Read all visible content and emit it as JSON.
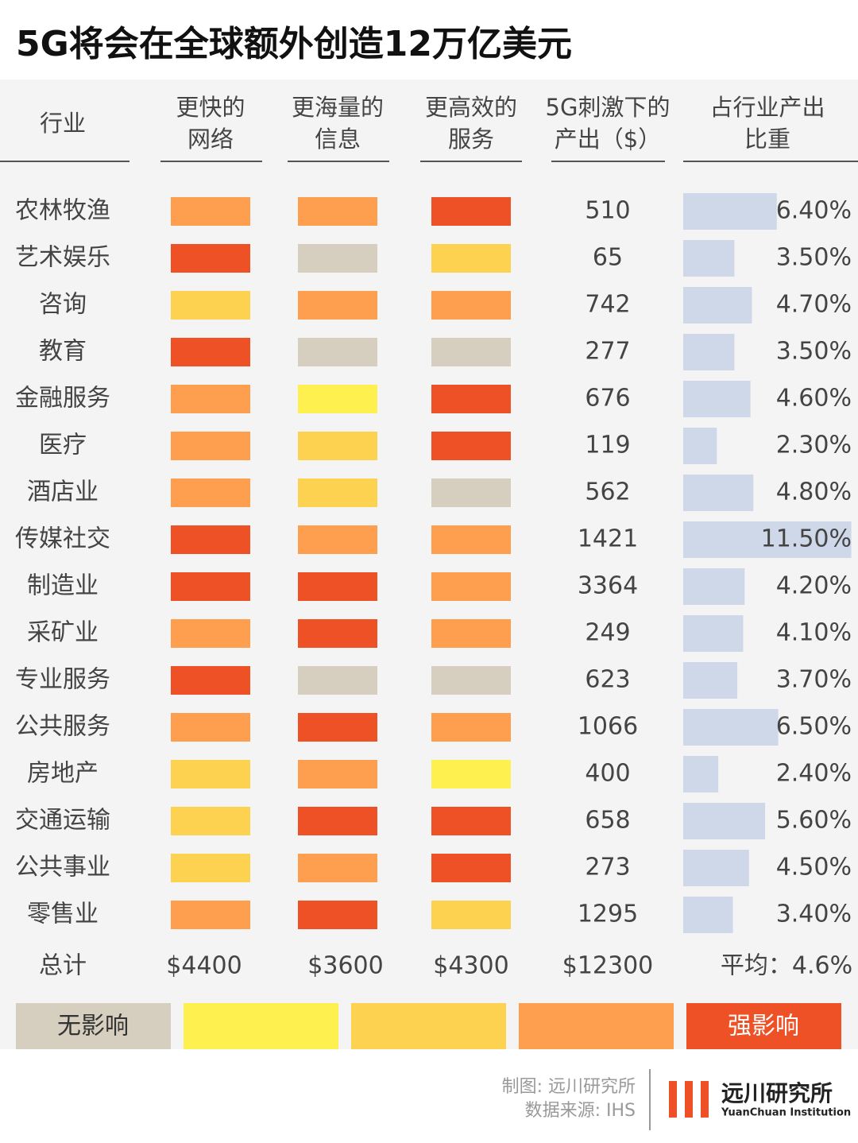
{
  "title": "5G将会在全球额外创造12万亿美元",
  "columns": [
    [
      "行业"
    ],
    [
      "更快的",
      "网络"
    ],
    [
      "更海量的",
      "信息"
    ],
    [
      "更高效的",
      "服务"
    ],
    [
      "5G刺激下的",
      "产出（$）"
    ],
    [
      "占行业产出",
      "比重"
    ]
  ],
  "rows": [
    {
      "industry": "农林牧渔",
      "fast": "#fd9f4f",
      "massive": "#fd9f4f",
      "efficient": "#ed5125",
      "output": "510",
      "share": {
        "value": 6.4,
        "label": "6.40%"
      }
    },
    {
      "industry": "艺术娱乐",
      "fast": "#ed5125",
      "massive": "#d6cfc0",
      "efficient": "#fdd250",
      "output": "65",
      "share": {
        "value": 3.5,
        "label": "3.50%"
      }
    },
    {
      "industry": "咨询",
      "fast": "#fdd250",
      "massive": "#fd9f4f",
      "efficient": "#fd9f4f",
      "output": "742",
      "share": {
        "value": 4.7,
        "label": "4.70%"
      }
    },
    {
      "industry": "教育",
      "fast": "#ed5125",
      "massive": "#d6cfc0",
      "efficient": "#d6cfc0",
      "output": "277",
      "share": {
        "value": 3.5,
        "label": "3.50%"
      }
    },
    {
      "industry": "金融服务",
      "fast": "#fd9f4f",
      "massive": "#fdf04f",
      "efficient": "#ed5125",
      "output": "676",
      "share": {
        "value": 4.6,
        "label": "4.60%"
      }
    },
    {
      "industry": "医疗",
      "fast": "#fd9f4f",
      "massive": "#fdd250",
      "efficient": "#ed5125",
      "output": "119",
      "share": {
        "value": 2.3,
        "label": "2.30%"
      }
    },
    {
      "industry": "酒店业",
      "fast": "#fd9f4f",
      "massive": "#fdd250",
      "efficient": "#d6cfc0",
      "output": "562",
      "share": {
        "value": 4.8,
        "label": "4.80%"
      }
    },
    {
      "industry": "传媒社交",
      "fast": "#ed5125",
      "massive": "#fd9f4f",
      "efficient": "#fd9f4f",
      "output": "1421",
      "share": {
        "value": 11.5,
        "label": "11.50%"
      }
    },
    {
      "industry": "制造业",
      "fast": "#ed5125",
      "massive": "#ed5125",
      "efficient": "#fd9f4f",
      "output": "3364",
      "share": {
        "value": 4.2,
        "label": "4.20%"
      }
    },
    {
      "industry": "采矿业",
      "fast": "#fd9f4f",
      "massive": "#ed5125",
      "efficient": "#fd9f4f",
      "output": "249",
      "share": {
        "value": 4.1,
        "label": "4.10%"
      }
    },
    {
      "industry": "专业服务",
      "fast": "#ed5125",
      "massive": "#d6cfc0",
      "efficient": "#d6cfc0",
      "output": "623",
      "share": {
        "value": 3.7,
        "label": "3.70%"
      }
    },
    {
      "industry": "公共服务",
      "fast": "#fd9f4f",
      "massive": "#ed5125",
      "efficient": "#fd9f4f",
      "output": "1066",
      "share": {
        "value": 6.5,
        "label": "6.50%"
      }
    },
    {
      "industry": "房地产",
      "fast": "#fdd250",
      "massive": "#fd9f4f",
      "efficient": "#fdf04f",
      "output": "400",
      "share": {
        "value": 2.4,
        "label": "2.40%"
      }
    },
    {
      "industry": "交通运输",
      "fast": "#fdd250",
      "massive": "#ed5125",
      "efficient": "#ed5125",
      "output": "658",
      "share": {
        "value": 5.6,
        "label": "5.60%"
      }
    },
    {
      "industry": "公共事业",
      "fast": "#fdd250",
      "massive": "#fd9f4f",
      "efficient": "#ed5125",
      "output": "273",
      "share": {
        "value": 4.5,
        "label": "4.50%"
      }
    },
    {
      "industry": "零售业",
      "fast": "#fd9f4f",
      "massive": "#ed5125",
      "efficient": "#fdd250",
      "output": "1295",
      "share": {
        "value": 3.4,
        "label": "3.40%"
      }
    }
  ],
  "totals": [
    "总计",
    "$4400",
    "$3600",
    "$4300",
    "$12300",
    "平均：4.6%"
  ],
  "share_bar_color": "#cfd8e8",
  "legend": [
    {
      "color": "#d6cfc0",
      "label": "无影响"
    },
    {
      "color": "#fdf04f"
    },
    {
      "color": "#fdd250"
    },
    {
      "color": "#fd9f4f"
    },
    {
      "color": "#ed5125",
      "label": "强影响"
    }
  ],
  "footer": {
    "credit": "制图: 远川研究所",
    "source": "数据来源: IHS",
    "logo": "远川研究所",
    "logo_en": "YuanChuan Institution"
  }
}
